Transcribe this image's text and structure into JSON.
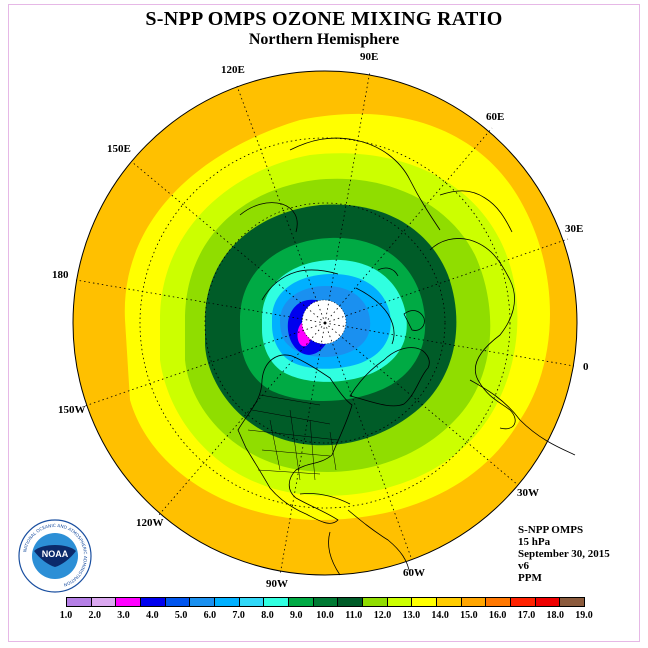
{
  "title": "S-NPP OMPS OZONE MIXING RATIO",
  "subtitle": "Northern Hemisphere",
  "longitude_labels": {
    "lon_90e": "90E",
    "lon_60e": "60E",
    "lon_30e": "30E",
    "lon_0": "0",
    "lon_30w": "30W",
    "lon_60w": "60W",
    "lon_90w": "90W",
    "lon_120w": "120W",
    "lon_150w": "150W",
    "lon_180": "180",
    "lon_150e": "150E",
    "lon_120e": "120E"
  },
  "info": {
    "instrument": "S-NPP OMPS",
    "pressure": "15 hPa",
    "date": "September 30, 2015",
    "version": "v6",
    "units": "PPM"
  },
  "logo": {
    "text": "NOAA",
    "ring_text": "NATIONAL OCEANIC AND ATMOSPHERIC ADMINISTRATION",
    "ring_text_bottom": "U.S. DEPARTMENT OF COMMERCE"
  },
  "legend": {
    "ticks": [
      "1.0",
      "2.0",
      "3.0",
      "4.0",
      "5.0",
      "6.0",
      "7.0",
      "8.0",
      "9.0",
      "10.0",
      "11.0",
      "12.0",
      "13.0",
      "14.0",
      "15.0",
      "16.0",
      "17.0",
      "18.0",
      "19.0"
    ],
    "colors": [
      "#b57fe6",
      "#dba8f0",
      "#ff00ff",
      "#0000ee",
      "#0055ee",
      "#1a90f0",
      "#00b0ff",
      "#30d8f8",
      "#30ffe0",
      "#00aa44",
      "#007a33",
      "#005c28",
      "#90dd00",
      "#ccff00",
      "#ffff00",
      "#ffcc00",
      "#ffa500",
      "#ff7700",
      "#ff2200",
      "#ee0000",
      "#8b5a3c"
    ]
  },
  "map": {
    "projection": "north polar stereographic",
    "zones_ppm": [
      14.5,
      14.0,
      13.5,
      12.5,
      11.5,
      10.5,
      9.5,
      8.5,
      7.5,
      5.0,
      3.5
    ],
    "zone_colors": [
      "#ffc000",
      "#ffff00",
      "#ccff00",
      "#90dd00",
      "#007a33",
      "#00aa44",
      "#30ffe0",
      "#00b0ff",
      "#1a90f0",
      "#0000ee",
      "#ff00ff"
    ]
  }
}
